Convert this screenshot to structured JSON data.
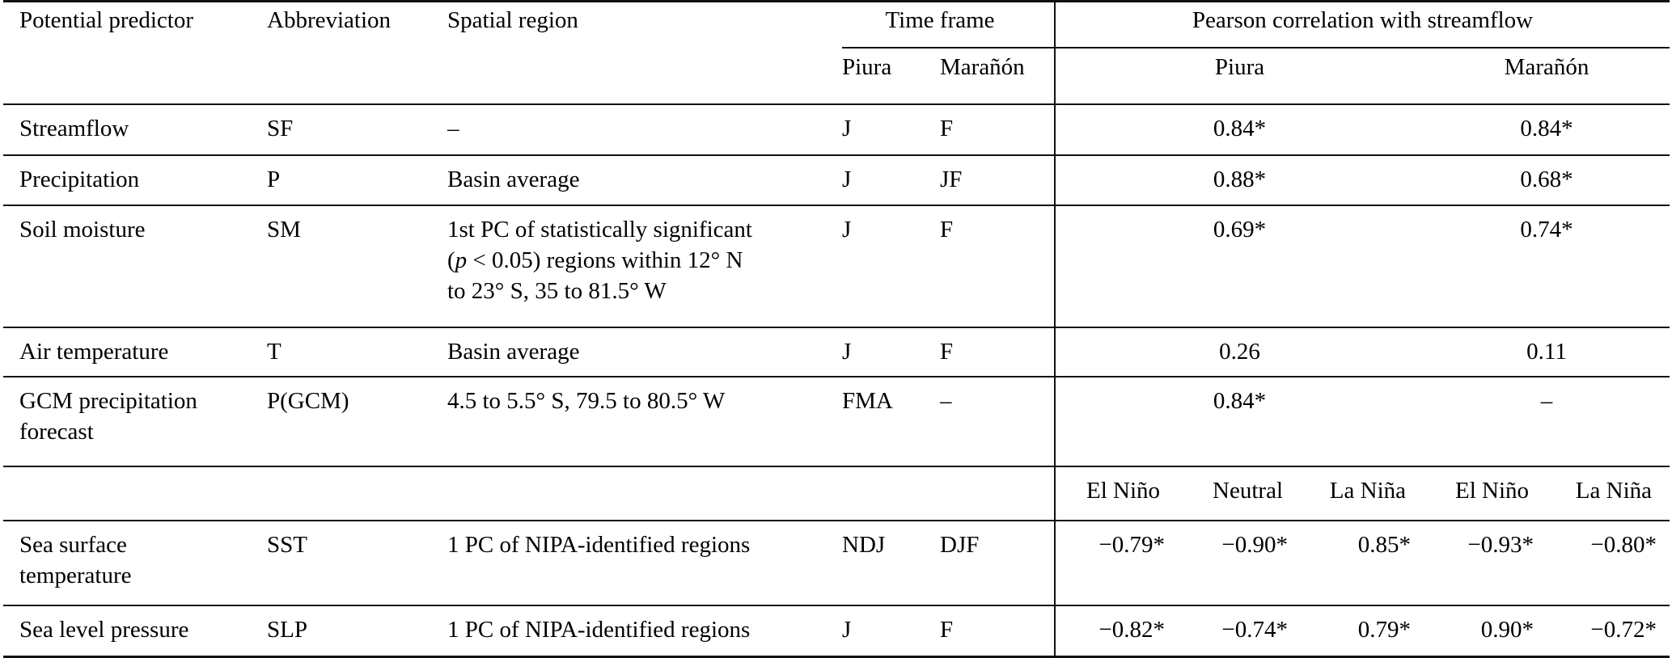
{
  "table": {
    "header": {
      "col_predictor": "Potential predictor",
      "col_abbreviation": "Abbreviation",
      "col_spatial": "Spatial region",
      "group_timeframe": "Time frame",
      "group_pearson": "Pearson correlation with streamflow",
      "sub_tf_piura": "Piura",
      "sub_tf_maranon": "Marañón",
      "sub_pearson_piura": "Piura",
      "sub_pearson_maranon": "Marañón"
    },
    "rows_top": [
      {
        "predictor": "Streamflow",
        "abbr": "SF",
        "spatial": "–",
        "tf_piura": "J",
        "tf_maranon": "F",
        "pearson_piura": "0.84*",
        "pearson_maranon": "0.84*"
      },
      {
        "predictor": "Precipitation",
        "abbr": "P",
        "spatial": "Basin average",
        "tf_piura": "J",
        "tf_maranon": "JF",
        "pearson_piura": "0.88*",
        "pearson_maranon": "0.68*"
      },
      {
        "predictor": "Soil moisture",
        "abbr": "SM",
        "spatial_html": "1st PC of statistically significant\n(<i>p</i> &lt; 0.05) regions within 12° N\nto 23° S, 35 to 81.5° W",
        "tf_piura": "J",
        "tf_maranon": "F",
        "pearson_piura": "0.69*",
        "pearson_maranon": "0.74*"
      },
      {
        "predictor": "Air temperature",
        "abbr": "T",
        "spatial": "Basin average",
        "tf_piura": "J",
        "tf_maranon": "F",
        "pearson_piura": "0.26",
        "pearson_maranon": "0.11"
      },
      {
        "predictor": "GCM precipitation\nforecast",
        "abbr": "P(GCM)",
        "spatial": "4.5 to 5.5° S, 79.5 to 80.5° W",
        "tf_piura": "FMA",
        "tf_maranon": "–",
        "pearson_piura": "0.84*",
        "pearson_maranon": "–"
      }
    ],
    "enso_subheader": [
      "El Niño",
      "Neutral",
      "La Niña",
      "El Niño",
      "La Niña"
    ],
    "rows_enso": [
      {
        "predictor": "Sea surface\ntemperature",
        "abbr": "SST",
        "spatial": "1 PC of NIPA-identified regions",
        "tf_piura": "NDJ",
        "tf_maranon": "DJF",
        "values": [
          "−0.79*",
          "−0.90*",
          "0.85*",
          "−0.93*",
          "−0.80*"
        ]
      },
      {
        "predictor": "Sea level pressure",
        "abbr": "SLP",
        "spatial": "1 PC of NIPA-identified regions",
        "tf_piura": "J",
        "tf_maranon": "F",
        "values": [
          "−0.82*",
          "−0.74*",
          "0.79*",
          "0.90*",
          "−0.72*"
        ]
      }
    ]
  }
}
